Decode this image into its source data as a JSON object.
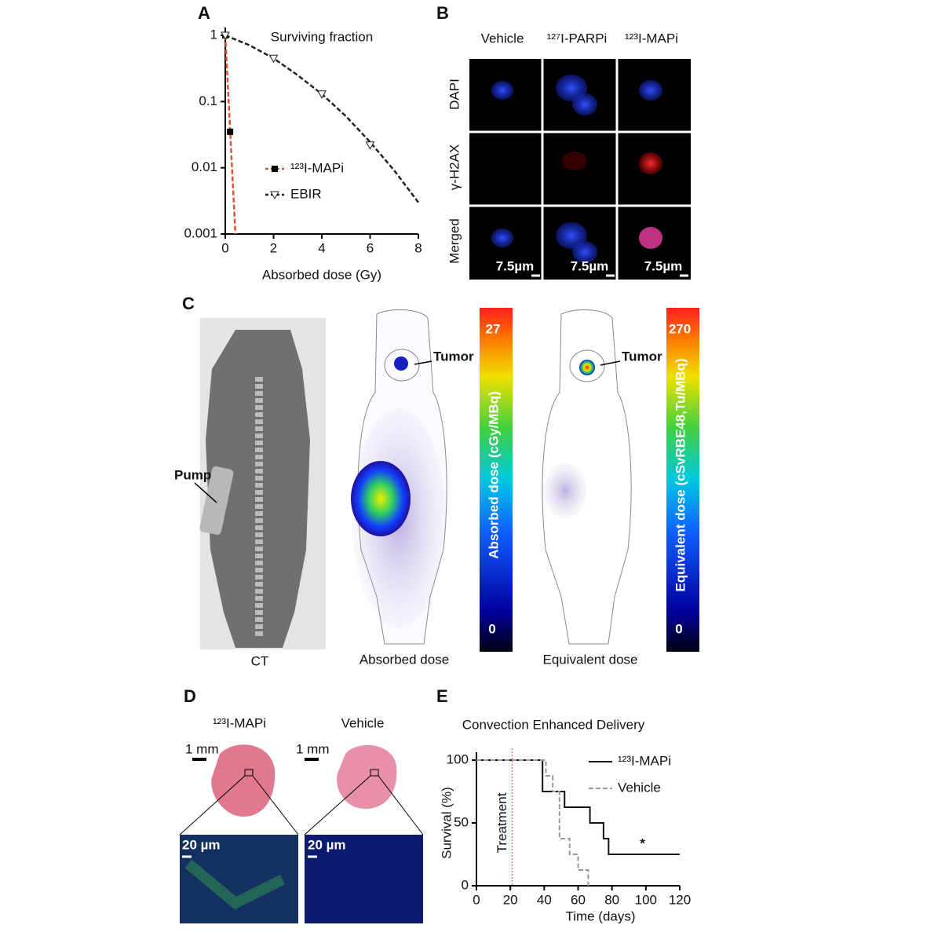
{
  "panel_labels": [
    "A",
    "B",
    "C",
    "D",
    "E"
  ],
  "chart_data": [
    {
      "type": "line",
      "title": "Surviving fraction",
      "x_label": "Absorbed dose (Gy)",
      "log_y": true,
      "xlim": [
        0,
        8
      ],
      "xticks": [
        0,
        2,
        4,
        6,
        8
      ],
      "ylim": [
        0.001,
        1
      ],
      "yticks": [
        1,
        0.1,
        0.01,
        0.001
      ],
      "grid": false,
      "legend": "lower left",
      "series": [
        {
          "name": "¹²³I-MAPi",
          "color": "#e0502f",
          "marker": "square",
          "x": [
            0,
            0.2
          ],
          "values": [
            1,
            0.035
          ],
          "fit_x": [
            0,
            0.42
          ],
          "fit_values": [
            1,
            0.001
          ]
        },
        {
          "name": "EBIR",
          "color": "#222222",
          "marker": "triangle-down",
          "x": [
            0,
            2,
            4,
            6
          ],
          "values": [
            1,
            0.45,
            0.13,
            0.022
          ],
          "fit_x": [
            0,
            1,
            2,
            3,
            4,
            5,
            6,
            7,
            8
          ],
          "fit_values": [
            1,
            0.71,
            0.45,
            0.25,
            0.13,
            0.06,
            0.0245,
            0.0091,
            0.003
          ]
        }
      ]
    },
    {
      "type": "step",
      "title": "Convection Enhanced Delivery",
      "x_label": "Time (days)",
      "y_label": "Survival (%)",
      "xlim": [
        0,
        120
      ],
      "xticks": [
        0,
        20,
        40,
        60,
        80,
        100,
        120
      ],
      "ylim": [
        0,
        100
      ],
      "yticks": [
        0,
        50,
        100
      ],
      "grid": false,
      "legend": "upper right",
      "series": [
        {
          "name": "¹²³I-MAPi",
          "color": "#111111",
          "dash": false,
          "x": [
            0,
            39,
            52,
            67,
            75,
            78,
            120
          ],
          "values": [
            100,
            75,
            62.5,
            50,
            37.5,
            25,
            25
          ]
        },
        {
          "name": "Vehicle",
          "color": "#999999",
          "dash": true,
          "x": [
            0,
            41,
            45,
            49,
            55,
            60,
            66
          ],
          "values": [
            100,
            87.5,
            75,
            37.5,
            25,
            12.5,
            0
          ]
        }
      ],
      "annotations": [
        {
          "text": "Treatment",
          "x": 21,
          "color": "#e03030"
        },
        {
          "text": "*",
          "x": 98,
          "y": 33
        }
      ]
    }
  ],
  "panel_b": {
    "columns": [
      "Vehicle",
      "¹²⁷I-PARPi",
      "¹²³I-MAPi"
    ],
    "rows": [
      "DAPI",
      "γ-H2AX",
      "Merged"
    ],
    "scale_bars": [
      "7.5µm",
      "7.5µm",
      "7.5µm"
    ]
  },
  "panel_c": {
    "captions": [
      "CT",
      "Absorbed dose",
      "Equivalent dose"
    ],
    "pump": "Pump",
    "tumor": [
      "Tumor",
      "Tumor"
    ],
    "colorbars": [
      {
        "title": "Absorbed dose (cGy/MBq)",
        "max": "27",
        "min": "0"
      },
      {
        "title": "Equivalent dose (cSvRBE48,Tu/MBq)",
        "max": "270",
        "min": "0"
      }
    ]
  },
  "panel_d": {
    "columns": [
      "¹²³I-MAPi",
      "Vehicle"
    ],
    "scale_top": [
      "1 mm",
      "1 mm"
    ],
    "scale_bottom": [
      "20 µm",
      "20 µm"
    ]
  }
}
